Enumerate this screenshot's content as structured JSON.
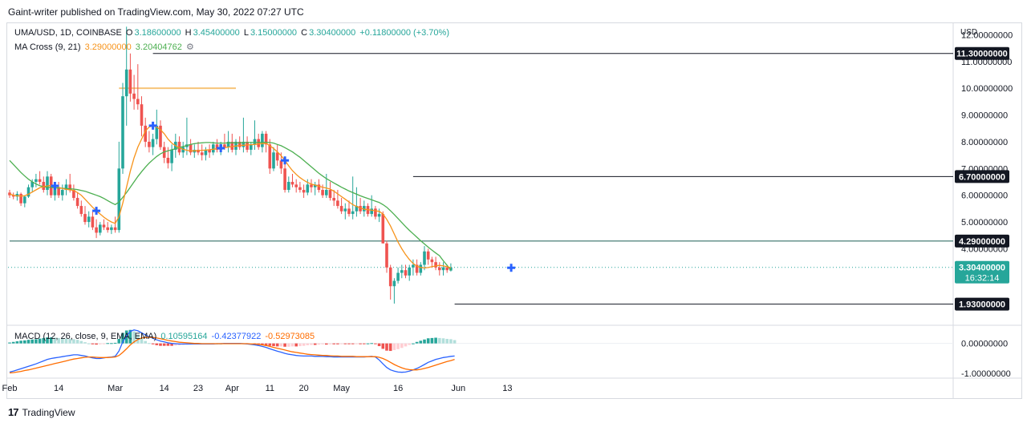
{
  "header": {
    "publisher_line": "Gaint-writer published on TradingView.com, May 30, 2022 07:27 UTC"
  },
  "legend": {
    "symbol": "UMA/USD, 1D, COINBASE",
    "o_label": "O",
    "o_value": "3.18600000",
    "h_label": "H",
    "h_value": "3.45400000",
    "l_label": "L",
    "l_value": "3.15000000",
    "c_label": "C",
    "c_value": "3.30400000",
    "change": "+0.11800000 (+3.70%)",
    "ma_title": "MA Cross (9, 21)",
    "ma_fast": "3.29000000",
    "ma_slow": "3.20404762",
    "macd_title": "MACD (12, 26, close, 9, EMA, EMA)",
    "macd_hist": "0.10595164",
    "macd_line": "-0.42377922",
    "macd_signal": "-0.52973085"
  },
  "footer": {
    "brand": "TradingView"
  },
  "colors": {
    "up": "#26a69a",
    "down": "#ef5350",
    "ma_fast": "#f7931a",
    "ma_slow": "#4caf50",
    "macd_line": "#2962ff",
    "signal_line": "#ff6d00",
    "hist_up": "#26a69a",
    "hist_up_light": "#b2dfdb",
    "hist_down": "#ef5350",
    "hist_down_light": "#ffcdd2",
    "hline": "#131722",
    "support": "#1b5e55",
    "resistance_short": "#f7c47a",
    "cross": "#2962ff"
  },
  "chart_data": [
    {
      "type": "candlestick",
      "symbol": "UMA/USD",
      "interval": "1D",
      "y_axis_label": "USD",
      "ylim": [
        1.2,
        12.4
      ],
      "y_ticks": [
        "12.00000000",
        "11.00000000",
        "10.00000000",
        "9.00000000",
        "8.00000000",
        "7.00000000",
        "6.00000000",
        "5.00000000",
        "4.00000000"
      ],
      "x_ticks": [
        "Feb",
        "14",
        "Mar",
        "14",
        "23",
        "Apr",
        "11",
        "20",
        "May",
        "16",
        "Jun",
        "13"
      ],
      "x_tick_days": [
        0,
        13,
        28,
        41,
        50,
        59,
        69,
        78,
        88,
        103,
        119,
        132
      ],
      "candles": [
        [
          6.1,
          6.2,
          5.9,
          6.0
        ],
        [
          6.0,
          6.1,
          5.85,
          5.95
        ],
        [
          5.95,
          6.15,
          5.8,
          6.05
        ],
        [
          6.05,
          6.1,
          5.6,
          5.7
        ],
        [
          5.7,
          6.0,
          5.55,
          5.95
        ],
        [
          5.95,
          6.4,
          5.9,
          6.3
        ],
        [
          6.3,
          6.6,
          6.1,
          6.5
        ],
        [
          6.5,
          6.8,
          6.3,
          6.6
        ],
        [
          6.6,
          6.9,
          6.4,
          6.5
        ],
        [
          6.5,
          6.7,
          6.1,
          6.2
        ],
        [
          6.2,
          6.9,
          6.0,
          6.7
        ],
        [
          6.7,
          6.8,
          5.9,
          6.0
        ],
        [
          6.0,
          6.4,
          5.8,
          6.3
        ],
        [
          6.3,
          6.5,
          5.9,
          6.0
        ],
        [
          6.0,
          6.4,
          5.8,
          6.2
        ],
        [
          6.2,
          6.6,
          6.0,
          6.4
        ],
        [
          6.4,
          6.8,
          6.1,
          6.2
        ],
        [
          6.2,
          6.4,
          5.8,
          5.9
        ],
        [
          5.9,
          6.1,
          5.5,
          5.6
        ],
        [
          5.6,
          5.8,
          5.2,
          5.3
        ],
        [
          5.3,
          5.6,
          4.9,
          5.0
        ],
        [
          5.0,
          5.4,
          4.8,
          5.2
        ],
        [
          5.2,
          5.4,
          4.7,
          4.8
        ],
        [
          4.8,
          5.1,
          4.4,
          4.6
        ],
        [
          4.6,
          5.0,
          4.5,
          4.9
        ],
        [
          4.9,
          5.1,
          4.7,
          4.8
        ],
        [
          4.8,
          5.0,
          4.6,
          4.7
        ],
        [
          4.7,
          4.9,
          4.55,
          4.8
        ],
        [
          4.8,
          5.2,
          4.6,
          4.7
        ],
        [
          4.7,
          8.0,
          4.6,
          7.0
        ],
        [
          7.0,
          10.2,
          6.8,
          9.7
        ],
        [
          9.7,
          12.3,
          8.6,
          10.7
        ],
        [
          10.7,
          11.3,
          9.5,
          9.8
        ],
        [
          9.8,
          10.5,
          9.2,
          9.6
        ],
        [
          9.6,
          10.9,
          9.2,
          9.4
        ],
        [
          9.4,
          9.7,
          8.2,
          8.6
        ],
        [
          8.6,
          8.9,
          7.8,
          8.0
        ],
        [
          8.0,
          8.4,
          7.6,
          7.8
        ],
        [
          7.8,
          8.3,
          7.5,
          8.1
        ],
        [
          8.1,
          9.2,
          7.9,
          8.6
        ],
        [
          8.6,
          8.8,
          7.7,
          7.8
        ],
        [
          7.8,
          8.0,
          7.2,
          7.4
        ],
        [
          7.4,
          7.8,
          7.0,
          7.2
        ],
        [
          7.2,
          7.9,
          6.9,
          7.7
        ],
        [
          7.7,
          8.3,
          7.4,
          8.0
        ],
        [
          8.0,
          8.2,
          7.5,
          7.6
        ],
        [
          7.6,
          8.0,
          7.4,
          7.8
        ],
        [
          7.8,
          8.9,
          7.5,
          7.9
        ],
        [
          7.9,
          8.1,
          7.5,
          7.6
        ],
        [
          7.6,
          7.9,
          7.4,
          7.7
        ],
        [
          7.7,
          8.0,
          7.5,
          7.6
        ],
        [
          7.6,
          7.9,
          7.3,
          7.5
        ],
        [
          7.5,
          7.8,
          7.3,
          7.7
        ],
        [
          7.7,
          7.9,
          7.4,
          7.6
        ],
        [
          7.6,
          8.0,
          7.5,
          7.9
        ],
        [
          7.9,
          8.1,
          7.6,
          7.7
        ],
        [
          7.7,
          8.0,
          7.5,
          7.9
        ],
        [
          7.9,
          8.3,
          7.7,
          7.8
        ],
        [
          7.8,
          8.4,
          7.6,
          8.0
        ],
        [
          8.0,
          8.3,
          7.6,
          7.7
        ],
        [
          7.7,
          8.1,
          7.5,
          8.0
        ],
        [
          8.0,
          8.2,
          7.7,
          7.8
        ],
        [
          7.8,
          8.9,
          7.6,
          8.0
        ],
        [
          8.0,
          8.2,
          7.6,
          7.7
        ],
        [
          7.7,
          8.0,
          7.5,
          7.9
        ],
        [
          7.9,
          8.8,
          7.7,
          8.1
        ],
        [
          8.1,
          8.3,
          7.7,
          7.8
        ],
        [
          7.8,
          8.4,
          7.6,
          8.3
        ],
        [
          8.3,
          8.4,
          7.6,
          7.9
        ],
        [
          7.9,
          8.1,
          6.8,
          7.0
        ],
        [
          7.0,
          7.8,
          6.9,
          7.6
        ],
        [
          7.6,
          7.9,
          7.1,
          7.3
        ],
        [
          7.3,
          7.6,
          6.8,
          7.0
        ],
        [
          7.0,
          7.2,
          6.1,
          6.2
        ],
        [
          6.2,
          6.7,
          6.1,
          6.5
        ],
        [
          6.5,
          6.8,
          6.3,
          6.4
        ],
        [
          6.4,
          6.6,
          6.1,
          6.3
        ],
        [
          6.3,
          6.5,
          6.1,
          6.2
        ],
        [
          6.2,
          6.4,
          5.9,
          6.1
        ],
        [
          6.1,
          6.6,
          6.0,
          6.4
        ],
        [
          6.4,
          6.6,
          6.1,
          6.3
        ],
        [
          6.3,
          6.5,
          6.0,
          6.4
        ],
        [
          6.4,
          6.6,
          6.1,
          6.2
        ],
        [
          6.2,
          6.4,
          5.9,
          6.0
        ],
        [
          6.0,
          6.8,
          5.9,
          6.2
        ],
        [
          6.2,
          6.5,
          5.8,
          5.9
        ],
        [
          5.9,
          6.2,
          5.6,
          5.8
        ],
        [
          5.8,
          6.2,
          5.5,
          5.6
        ],
        [
          5.6,
          5.9,
          5.3,
          5.4
        ],
        [
          5.4,
          5.7,
          5.1,
          5.5
        ],
        [
          5.5,
          5.8,
          5.2,
          5.3
        ],
        [
          5.3,
          6.7,
          5.1,
          5.4
        ],
        [
          5.4,
          6.3,
          5.2,
          5.6
        ],
        [
          5.6,
          5.9,
          5.3,
          5.4
        ],
        [
          5.4,
          5.8,
          5.2,
          5.6
        ],
        [
          5.6,
          5.7,
          5.2,
          5.3
        ],
        [
          5.3,
          6.0,
          5.2,
          5.5
        ],
        [
          5.5,
          5.6,
          5.1,
          5.2
        ],
        [
          5.2,
          5.5,
          5.0,
          5.3
        ],
        [
          5.3,
          5.4,
          4.2,
          4.2
        ],
        [
          4.2,
          4.3,
          3.1,
          3.3
        ],
        [
          3.3,
          3.4,
          2.1,
          2.6
        ],
        [
          2.6,
          2.9,
          1.95,
          2.8
        ],
        [
          2.8,
          3.3,
          2.7,
          3.1
        ],
        [
          3.1,
          3.4,
          2.9,
          3.2
        ],
        [
          3.2,
          3.4,
          2.9,
          3.0
        ],
        [
          3.0,
          3.4,
          2.8,
          3.3
        ],
        [
          3.3,
          3.6,
          3.0,
          3.4
        ],
        [
          3.4,
          3.6,
          3.0,
          3.1
        ],
        [
          3.1,
          3.5,
          3.0,
          3.4
        ],
        [
          3.4,
          4.1,
          3.2,
          3.9
        ],
        [
          3.9,
          4.0,
          3.4,
          3.6
        ],
        [
          3.6,
          3.7,
          3.3,
          3.5
        ],
        [
          3.5,
          3.7,
          3.2,
          3.3
        ],
        [
          3.3,
          3.5,
          3.0,
          3.2
        ],
        [
          3.2,
          3.5,
          3.0,
          3.3
        ],
        [
          3.3,
          3.4,
          3.1,
          3.2
        ],
        [
          3.186,
          3.454,
          3.15,
          3.304
        ]
      ],
      "ma_fast_values": [
        6.05,
        6.0,
        5.98,
        5.97,
        5.98,
        6.04,
        6.12,
        6.2,
        6.28,
        6.32,
        6.35,
        6.37,
        6.35,
        6.3,
        6.25,
        6.22,
        6.2,
        6.18,
        6.1,
        6.0,
        5.85,
        5.7,
        5.55,
        5.42,
        5.3,
        5.18,
        5.08,
        5.0,
        4.95,
        5.2,
        5.7,
        6.3,
        6.9,
        7.4,
        7.8,
        8.1,
        8.4,
        8.55,
        8.6,
        8.55,
        8.45,
        8.3,
        8.1,
        7.95,
        7.85,
        7.78,
        7.72,
        7.68,
        7.66,
        7.66,
        7.67,
        7.68,
        7.69,
        7.7,
        7.72,
        7.74,
        7.76,
        7.78,
        7.8,
        7.82,
        7.84,
        7.86,
        7.87,
        7.88,
        7.89,
        7.9,
        7.92,
        7.93,
        7.94,
        7.85,
        7.75,
        7.62,
        7.48,
        7.3,
        7.1,
        6.92,
        6.78,
        6.66,
        6.56,
        6.48,
        6.42,
        6.38,
        6.34,
        6.3,
        6.27,
        6.23,
        6.15,
        6.05,
        5.95,
        5.85,
        5.75,
        5.65,
        5.58,
        5.52,
        5.48,
        5.46,
        5.44,
        5.42,
        5.4,
        5.3,
        5.1,
        4.85,
        4.55,
        4.25,
        4.0,
        3.78,
        3.6,
        3.45,
        3.35,
        3.3,
        3.28,
        3.3,
        3.33,
        3.36,
        3.38,
        3.36,
        3.33,
        3.29
      ],
      "ma_slow_values": [
        7.3,
        7.15,
        7.0,
        6.85,
        6.72,
        6.6,
        6.5,
        6.42,
        6.36,
        6.32,
        6.3,
        6.29,
        6.28,
        6.27,
        6.26,
        6.25,
        6.24,
        6.23,
        6.21,
        6.18,
        6.15,
        6.1,
        6.05,
        6.0,
        5.95,
        5.88,
        5.8,
        5.72,
        5.65,
        5.75,
        5.92,
        6.1,
        6.3,
        6.5,
        6.7,
        6.88,
        7.05,
        7.2,
        7.33,
        7.45,
        7.55,
        7.62,
        7.66,
        7.7,
        7.74,
        7.78,
        7.82,
        7.86,
        7.9,
        7.93,
        7.95,
        7.96,
        7.97,
        7.97,
        7.96,
        7.95,
        7.95,
        7.95,
        7.96,
        7.96,
        7.96,
        7.96,
        7.97,
        7.97,
        7.97,
        7.97,
        7.98,
        7.98,
        7.98,
        7.97,
        7.95,
        7.9,
        7.85,
        7.78,
        7.7,
        7.62,
        7.52,
        7.42,
        7.3,
        7.18,
        7.06,
        6.94,
        6.82,
        6.72,
        6.62,
        6.54,
        6.46,
        6.38,
        6.3,
        6.23,
        6.16,
        6.1,
        6.04,
        5.98,
        5.93,
        5.88,
        5.83,
        5.78,
        5.73,
        5.65,
        5.55,
        5.42,
        5.28,
        5.13,
        4.98,
        4.83,
        4.69,
        4.56,
        4.43,
        4.3,
        4.18,
        4.06,
        3.95,
        3.84,
        3.74,
        3.55,
        3.38,
        3.2
      ],
      "cross_marker_days": [
        12,
        23,
        38,
        56,
        73,
        133
      ],
      "horizontal_lines": [
        {
          "value": 11.3,
          "label": "11.30000000",
          "from_day": 38
        },
        {
          "value": 6.7,
          "label": "6.70000000",
          "from_day": 107
        },
        {
          "value": 4.29,
          "label": "4.29000000",
          "from_day": 0
        },
        {
          "value": 1.93,
          "label": "1.93000000",
          "from_day": 118
        }
      ],
      "short_line": {
        "value": 10.0,
        "from_day": 29,
        "to_day": 60
      },
      "last_price": {
        "value": 3.304,
        "label": "3.30400000",
        "countdown": "16:32:14"
      }
    },
    {
      "type": "macd",
      "ylim": [
        -1.1,
        0.55
      ],
      "y_ticks": [
        "0.00000000",
        "-1.00000000"
      ],
      "macd_values": [
        -0.95,
        -0.92,
        -0.88,
        -0.84,
        -0.8,
        -0.76,
        -0.72,
        -0.68,
        -0.63,
        -0.58,
        -0.53,
        -0.5,
        -0.48,
        -0.46,
        -0.44,
        -0.42,
        -0.4,
        -0.38,
        -0.38,
        -0.4,
        -0.42,
        -0.45,
        -0.48,
        -0.5,
        -0.5,
        -0.48,
        -0.46,
        -0.45,
        -0.43,
        -0.25,
        0.05,
        0.25,
        0.4,
        0.45,
        0.42,
        0.35,
        0.28,
        0.22,
        0.17,
        0.12,
        0.08,
        0.05,
        0.02,
        0.0,
        -0.01,
        -0.02,
        -0.02,
        -0.02,
        -0.02,
        -0.02,
        -0.02,
        -0.02,
        -0.02,
        -0.02,
        -0.02,
        -0.01,
        -0.01,
        0.0,
        0.0,
        0.0,
        0.0,
        0.0,
        -0.01,
        -0.02,
        -0.03,
        -0.05,
        -0.07,
        -0.1,
        -0.13,
        -0.18,
        -0.22,
        -0.26,
        -0.29,
        -0.33,
        -0.36,
        -0.38,
        -0.4,
        -0.41,
        -0.42,
        -0.42,
        -0.42,
        -0.43,
        -0.43,
        -0.43,
        -0.44,
        -0.44,
        -0.45,
        -0.45,
        -0.45,
        -0.45,
        -0.45,
        -0.45,
        -0.45,
        -0.45,
        -0.45,
        -0.44,
        -0.43,
        -0.45,
        -0.55,
        -0.68,
        -0.8,
        -0.88,
        -0.92,
        -0.95,
        -0.96,
        -0.95,
        -0.92,
        -0.88,
        -0.83,
        -0.77,
        -0.7,
        -0.63,
        -0.58,
        -0.53,
        -0.5,
        -0.47,
        -0.45,
        -0.43,
        -0.42
      ],
      "signal_values": [
        -0.98,
        -0.97,
        -0.95,
        -0.93,
        -0.9,
        -0.88,
        -0.85,
        -0.82,
        -0.79,
        -0.76,
        -0.73,
        -0.7,
        -0.67,
        -0.64,
        -0.61,
        -0.58,
        -0.55,
        -0.52,
        -0.5,
        -0.48,
        -0.46,
        -0.45,
        -0.45,
        -0.46,
        -0.47,
        -0.47,
        -0.47,
        -0.46,
        -0.45,
        -0.4,
        -0.3,
        -0.18,
        -0.05,
        0.05,
        0.13,
        0.18,
        0.2,
        0.21,
        0.2,
        0.18,
        0.16,
        0.13,
        0.1,
        0.08,
        0.06,
        0.04,
        0.03,
        0.02,
        0.01,
        0.0,
        0.0,
        -0.01,
        -0.01,
        -0.01,
        -0.01,
        -0.01,
        -0.01,
        -0.01,
        -0.01,
        -0.01,
        -0.01,
        -0.01,
        -0.01,
        -0.01,
        -0.02,
        -0.02,
        -0.03,
        -0.05,
        -0.07,
        -0.1,
        -0.13,
        -0.16,
        -0.19,
        -0.22,
        -0.25,
        -0.28,
        -0.3,
        -0.32,
        -0.34,
        -0.36,
        -0.37,
        -0.38,
        -0.39,
        -0.4,
        -0.4,
        -0.41,
        -0.42,
        -0.42,
        -0.43,
        -0.43,
        -0.43,
        -0.43,
        -0.44,
        -0.44,
        -0.44,
        -0.44,
        -0.44,
        -0.44,
        -0.46,
        -0.5,
        -0.56,
        -0.63,
        -0.7,
        -0.76,
        -0.81,
        -0.85,
        -0.87,
        -0.88,
        -0.88,
        -0.86,
        -0.83,
        -0.8,
        -0.76,
        -0.72,
        -0.68,
        -0.64,
        -0.6,
        -0.57,
        -0.53
      ]
    }
  ]
}
